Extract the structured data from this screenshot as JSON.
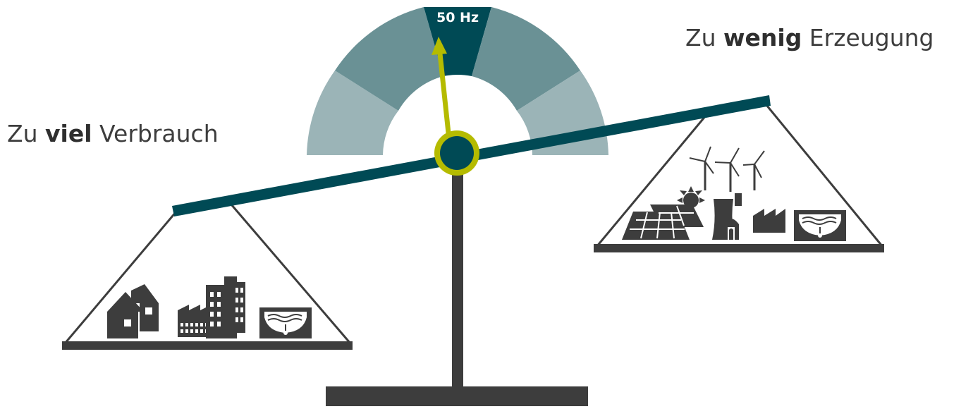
{
  "gauge": {
    "frequency_label": "50 Hz",
    "colors": {
      "outer_segment": "#9bb4b7",
      "middle_segment": "#6a9195",
      "center_segment": "#004a55",
      "needle": "#b5bb00",
      "pivot_ring": "#b5bb00",
      "pivot_core": "#004a55"
    },
    "needle_tilt_deg": -10
  },
  "labels": {
    "left": {
      "prefix": "Zu ",
      "emphasis": "viel",
      "suffix": " Verbrauch"
    },
    "right": {
      "prefix": "Zu ",
      "emphasis": "wenig",
      "suffix": " Erzeugung"
    }
  },
  "scale": {
    "beam_color": "#004a55",
    "stand_color": "#3d3d3d",
    "left_pan_icons": [
      "house-icon",
      "factory-icon",
      "office-building-icon",
      "storage-reservoir-icon"
    ],
    "right_pan_icons": [
      "wind-turbine-icon",
      "sun-icon",
      "solar-panel-icon",
      "power-plant-icon",
      "factory-icon",
      "storage-reservoir-icon"
    ]
  }
}
